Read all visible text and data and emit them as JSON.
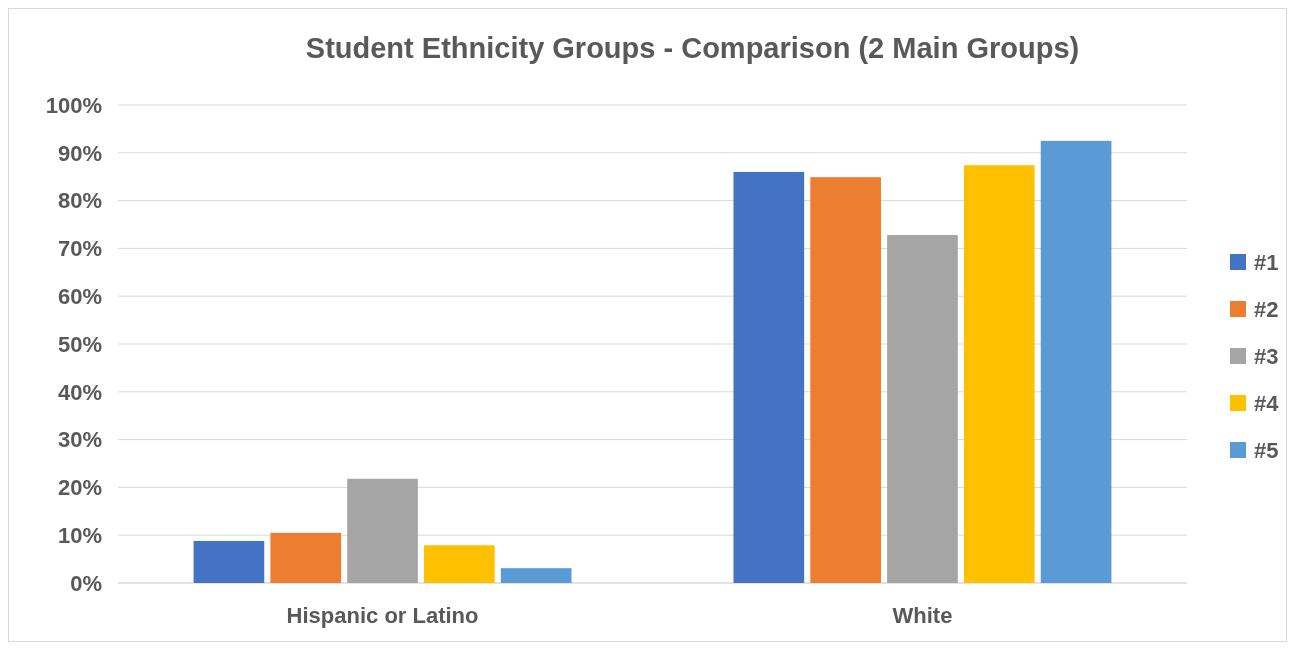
{
  "chart_data": {
    "type": "bar",
    "title": "Student Ethnicity Groups - Comparison  (2 Main Groups)",
    "categories": [
      "Hispanic or Latino",
      "White"
    ],
    "series": [
      {
        "name": "#1",
        "color": "#4472c4",
        "values": [
          8.8,
          86.0
        ]
      },
      {
        "name": "#2",
        "color": "#ed7d31",
        "values": [
          10.5,
          84.9
        ]
      },
      {
        "name": "#3",
        "color": "#a5a5a5",
        "values": [
          21.8,
          72.8
        ]
      },
      {
        "name": "#4",
        "color": "#ffc000",
        "values": [
          7.9,
          87.4
        ]
      },
      {
        "name": "#5",
        "color": "#5b9bd5",
        "values": [
          3.1,
          92.5
        ]
      }
    ],
    "ylim": [
      0,
      100
    ],
    "yticks": [
      {
        "value": 0,
        "label": "0%"
      },
      {
        "value": 10,
        "label": "10%"
      },
      {
        "value": 20,
        "label": "20%"
      },
      {
        "value": 30,
        "label": "30%"
      },
      {
        "value": 40,
        "label": "40%"
      },
      {
        "value": 50,
        "label": "50%"
      },
      {
        "value": 60,
        "label": "60%"
      },
      {
        "value": 70,
        "label": "70%"
      },
      {
        "value": 80,
        "label": "80%"
      },
      {
        "value": 90,
        "label": "90%"
      },
      {
        "value": 100,
        "label": "100%"
      }
    ],
    "grid": "y",
    "legend": "right"
  }
}
